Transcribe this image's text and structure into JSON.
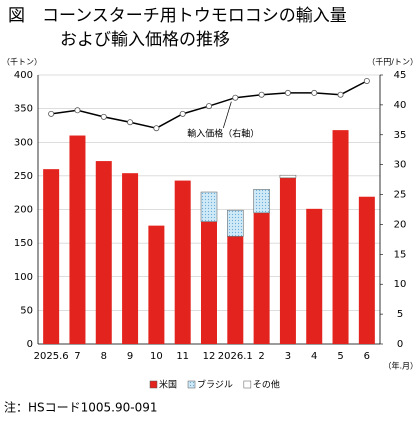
{
  "chart_data": {
    "type": "bar",
    "title": "図　コーンスターチ用トウモロコシの輸入量",
    "subtitle": "および輸入価格の推移",
    "y_label": "（千トン）",
    "y2_label": "（千円/トン）",
    "x_label": "（年.月）",
    "categories": [
      "2025.6",
      "7",
      "8",
      "9",
      "10",
      "11",
      "12",
      "2026.1",
      "2",
      "3",
      "4",
      "5",
      "6"
    ],
    "series": [
      {
        "name": "米国",
        "color": "#e3231e",
        "values": [
          260,
          310,
          272,
          254,
          176,
          243,
          182,
          160,
          195,
          247,
          201,
          318,
          219
        ]
      },
      {
        "name": "ブラジル",
        "color": "#cfe9f7",
        "values": [
          0,
          0,
          0,
          0,
          0,
          0,
          44,
          39,
          35,
          0,
          0,
          0,
          0
        ]
      },
      {
        "name": "その他",
        "color": "#ffffff",
        "values": [
          0,
          0,
          0,
          0,
          0,
          0,
          0,
          0,
          0,
          4,
          0,
          0,
          0
        ]
      },
      {
        "name": "輸入価格（右軸）",
        "type": "line",
        "axis": "y2",
        "color": "#000000",
        "values": [
          38.5,
          39.1,
          38.0,
          37.1,
          36.1,
          38.5,
          39.8,
          41.2,
          41.7,
          42.0,
          42.0,
          41.7,
          44.0
        ]
      }
    ],
    "ylim": [
      0,
      400
    ],
    "yticks": [
      0,
      50,
      100,
      150,
      200,
      250,
      300,
      350,
      400
    ],
    "y2lim": [
      0,
      45
    ],
    "y2ticks": [
      0,
      5,
      10,
      15,
      20,
      25,
      30,
      35,
      40,
      45
    ],
    "grid": true,
    "note": "注：HSコード1005.90-091"
  }
}
